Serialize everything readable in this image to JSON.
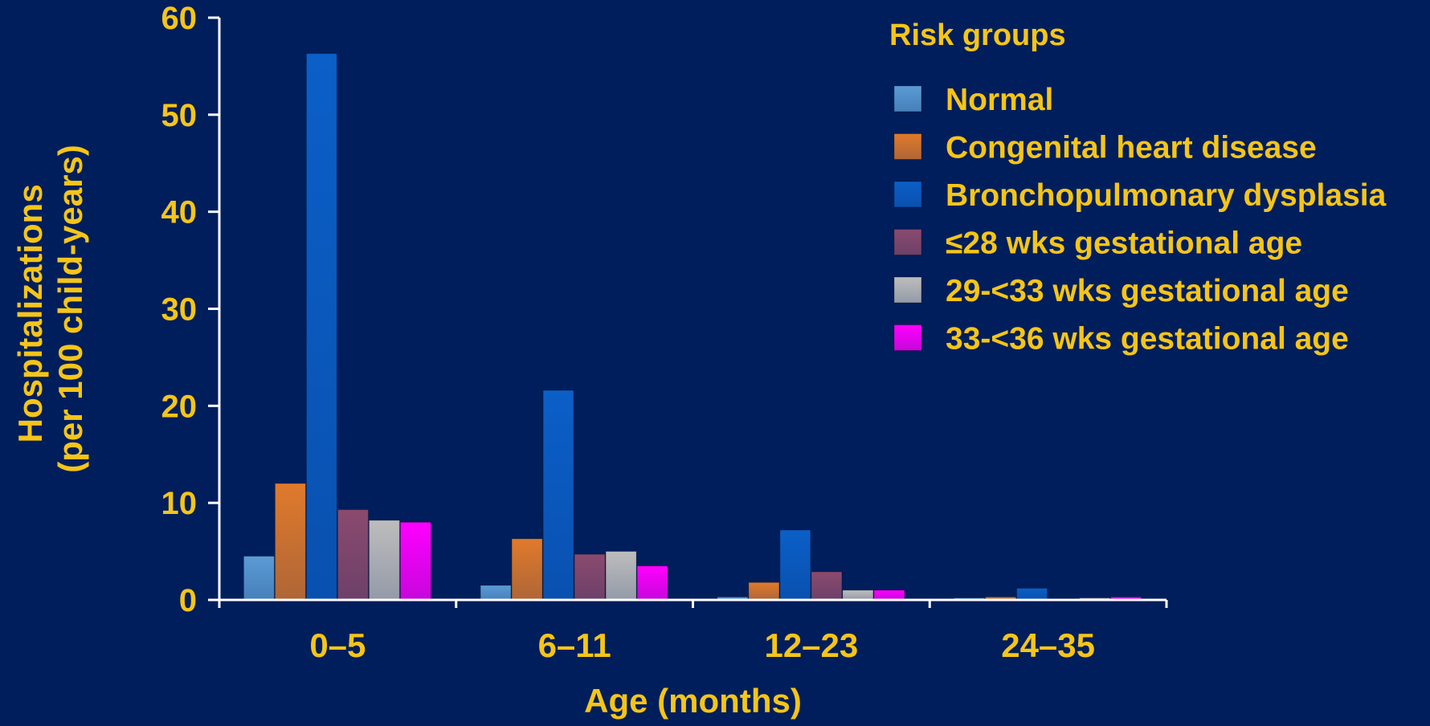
{
  "chart_data": {
    "type": "bar",
    "xlabel": "Age (months)",
    "ylabel_lines": [
      "Hospitalizations",
      "(per 100 child-years)"
    ],
    "categories": [
      "0–5",
      "6–11",
      "12–23",
      "24–35"
    ],
    "ylim": [
      0,
      60
    ],
    "yticks": [
      0,
      10,
      20,
      30,
      40,
      50,
      60
    ],
    "grid": false,
    "legend": {
      "title": "Risk groups",
      "placement": "top-right"
    },
    "series": [
      {
        "name": "Normal",
        "color": "#5B9BD5",
        "values": [
          4.5,
          1.5,
          0.3,
          0.2
        ]
      },
      {
        "name": "Congenital heart disease",
        "color": "#E07A2C",
        "values": [
          12.0,
          6.3,
          1.8,
          0.3
        ]
      },
      {
        "name": "Bronchopulmonary dysplasia",
        "color": "#0B5FC7",
        "values": [
          56.3,
          21.6,
          7.2,
          1.2
        ]
      },
      {
        "name": "≤28 wks gestational age",
        "color": "#8B4A6E",
        "values": [
          9.3,
          4.7,
          2.9,
          0.1
        ]
      },
      {
        "name": "29-<33 wks gestational age",
        "color": "#BDBDBD",
        "values": [
          8.2,
          5.0,
          1.0,
          0.2
        ]
      },
      {
        "name": "33-<36 wks gestational age",
        "color": "#FF00FF",
        "values": [
          8.0,
          3.5,
          1.0,
          0.3
        ]
      }
    ]
  },
  "colors": {
    "background": "#001E5C",
    "text": "#F5C518",
    "axis": "#FFFFFF"
  }
}
